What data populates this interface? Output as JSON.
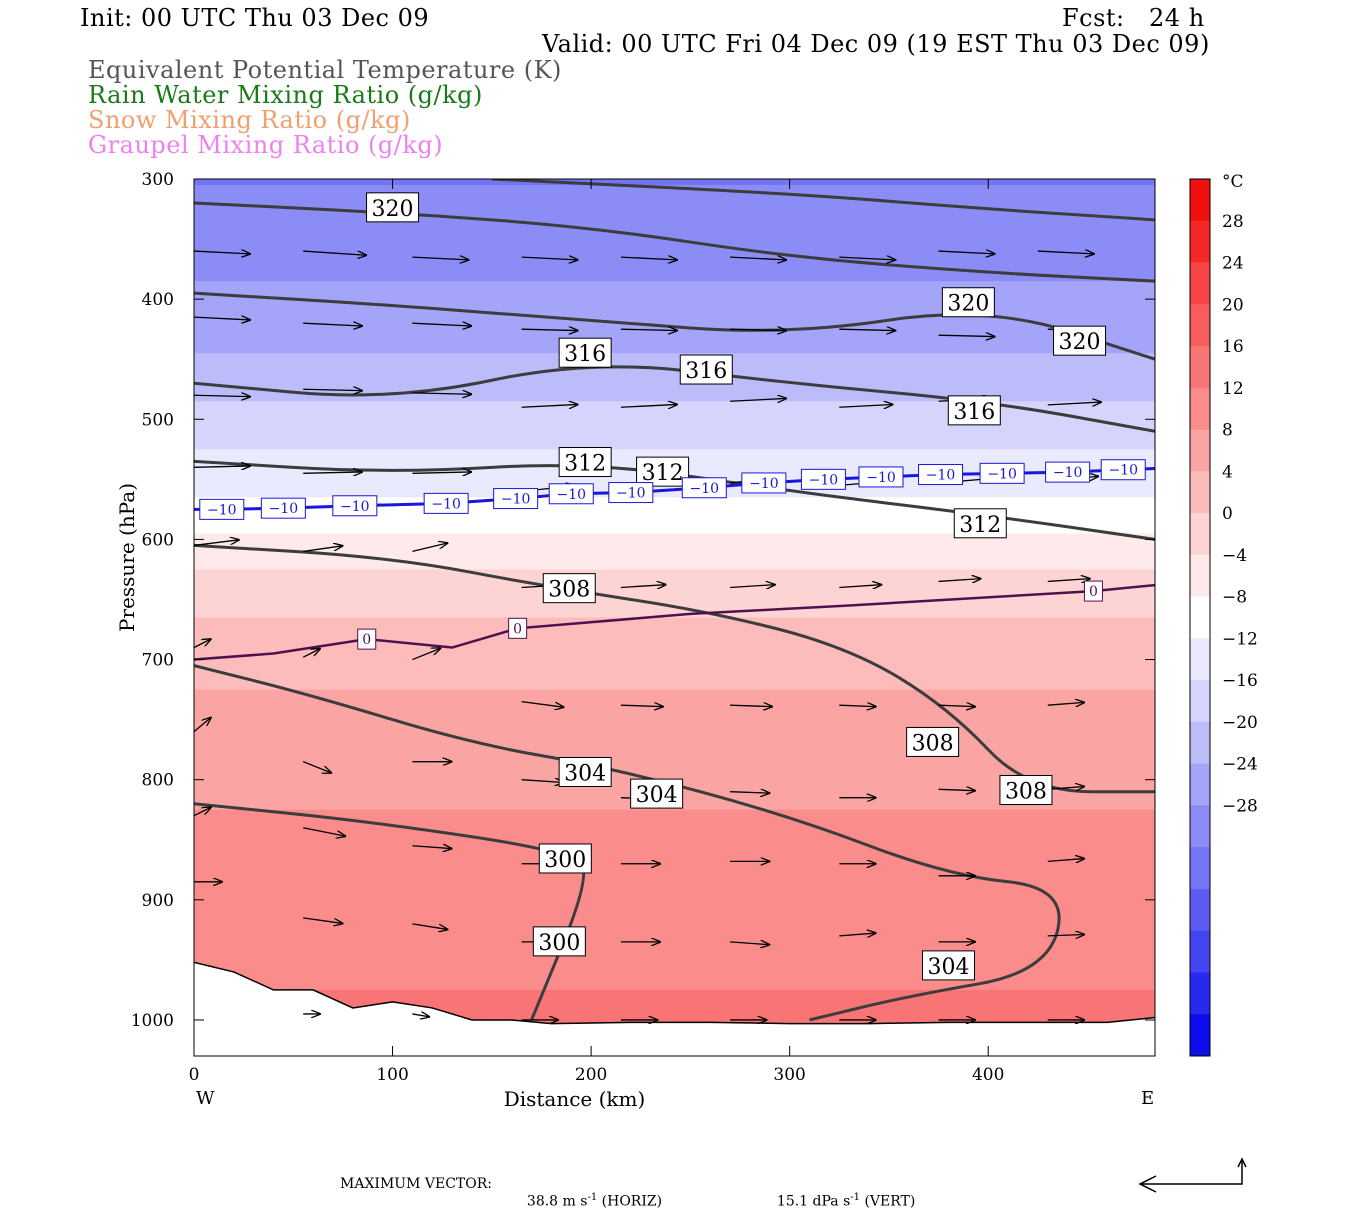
{
  "header": {
    "init": "Init: 00 UTC Thu 03 Dec 09",
    "fcst": "Fcst:   24 h",
    "valid": "Valid: 00 UTC Fri 04 Dec 09 (19 EST Thu 03 Dec 09)",
    "legend": [
      {
        "text": "Equivalent Potential Temperature (K)",
        "color": "#555555"
      },
      {
        "text": "Rain Water Mixing Ratio (g/kg)",
        "color": "#1a7a1a"
      },
      {
        "text": "Snow Mixing Ratio (g/kg)",
        "color": "#f0a070"
      },
      {
        "text": "Graupel Mixing Ratio (g/kg)",
        "color": "#f080f0"
      }
    ]
  },
  "footer": {
    "max_vector_label": "MAXIMUM VECTOR:",
    "horiz_value": "38.8",
    "horiz_unit": "m s",
    "horiz_tag": "(HORIZ)",
    "vert_value": "15.1",
    "vert_unit": "dPa s",
    "vert_tag": "(VERT)",
    "exp": "-1"
  },
  "chart_data": {
    "type": "cross-section",
    "xlabel": "Distance (km)",
    "ylabel": "Pressure (hPa)",
    "xlim": [
      0,
      484
    ],
    "ylim": [
      1030,
      300
    ],
    "x_ticks": [
      0,
      100,
      200,
      300,
      400
    ],
    "y_ticks": [
      300,
      400,
      500,
      600,
      700,
      800,
      900,
      1000
    ],
    "x_end_labels": {
      "left": "W",
      "right": "E"
    },
    "colorbar": {
      "unit": "°C",
      "labels": [
        28,
        24,
        20,
        16,
        12,
        8,
        4,
        0,
        -4,
        -8,
        -12,
        -16,
        -20,
        -24,
        -28
      ],
      "colors": [
        "#f01010",
        "#f42828",
        "#f74444",
        "#f85c5c",
        "#f97474",
        "#fa8c8c",
        "#fba4a4",
        "#fcbcbc",
        "#fdd4d4",
        "#feeaea",
        "#ffffff",
        "#eaeafe",
        "#d4d4fc",
        "#bcbcfa",
        "#a4a4f8",
        "#8c8cf6",
        "#7474f4",
        "#5c5cf2",
        "#4444f0",
        "#2828ee",
        "#0c0cec"
      ]
    },
    "temperature_bands": [
      {
        "p": 300,
        "t": -32
      },
      {
        "p": 420,
        "t": -26
      },
      {
        "p": 500,
        "t": -18
      },
      {
        "p": 560,
        "t": -12
      },
      {
        "p": 620,
        "t": -4
      },
      {
        "p": 660,
        "t": 0
      },
      {
        "p": 720,
        "t": 4
      },
      {
        "p": 820,
        "t": 8
      },
      {
        "p": 920,
        "t": 10
      },
      {
        "p": 1000,
        "t": 13
      }
    ],
    "theta_e_contours": [
      {
        "value": 320,
        "points": [
          [
            0,
            320
          ],
          [
            100,
            328
          ],
          [
            200,
            340
          ],
          [
            300,
            365
          ],
          [
            400,
            378
          ],
          [
            484,
            385
          ]
        ],
        "labels": [
          [
            100,
            324
          ]
        ]
      },
      {
        "value": 320,
        "points": [
          [
            150,
            300
          ],
          [
            300,
            312
          ],
          [
            400,
            325
          ],
          [
            484,
            334
          ]
        ],
        "labels": []
      },
      {
        "value": 320,
        "points": [
          [
            0,
            395
          ],
          [
            100,
            405
          ],
          [
            200,
            418
          ],
          [
            300,
            430
          ],
          [
            400,
            405
          ],
          [
            484,
            450
          ]
        ],
        "labels": [
          [
            390,
            403
          ],
          [
            446,
            435
          ]
        ]
      },
      {
        "value": 316,
        "points": [
          [
            0,
            470
          ],
          [
            100,
            485
          ],
          [
            200,
            450
          ],
          [
            300,
            470
          ],
          [
            400,
            485
          ],
          [
            484,
            510
          ]
        ],
        "labels": [
          [
            197,
            445
          ],
          [
            258,
            459
          ],
          [
            393,
            493
          ]
        ]
      },
      {
        "value": 312,
        "points": [
          [
            0,
            535
          ],
          [
            100,
            545
          ],
          [
            200,
            535
          ],
          [
            300,
            560
          ],
          [
            400,
            580
          ],
          [
            484,
            600
          ]
        ],
        "labels": [
          [
            197,
            536
          ],
          [
            236,
            544
          ],
          [
            396,
            587
          ]
        ]
      },
      {
        "value": 308,
        "points": [
          [
            0,
            605
          ],
          [
            100,
            615
          ],
          [
            180,
            640
          ],
          [
            260,
            660
          ],
          [
            330,
            690
          ],
          [
            380,
            740
          ],
          [
            420,
            810
          ],
          [
            484,
            810
          ]
        ],
        "labels": [
          [
            189,
            641
          ],
          [
            372,
            769
          ],
          [
            419,
            809
          ]
        ]
      },
      {
        "value": 304,
        "points": [
          [
            0,
            705
          ],
          [
            60,
            730
          ],
          [
            140,
            770
          ],
          [
            210,
            790
          ],
          [
            300,
            830
          ],
          [
            380,
            880
          ],
          [
            440,
            890
          ],
          [
            430,
            960
          ],
          [
            360,
            980
          ],
          [
            310,
            1000
          ]
        ],
        "labels": [
          [
            197,
            794
          ],
          [
            233,
            812
          ],
          [
            380,
            955
          ]
        ]
      },
      {
        "value": 300,
        "points": [
          [
            0,
            820
          ],
          [
            90,
            835
          ],
          [
            190,
            860
          ],
          [
            200,
            880
          ],
          [
            170,
            1000
          ]
        ],
        "labels": [
          [
            187,
            866
          ],
          [
            184,
            935
          ]
        ]
      }
    ],
    "isotherm_labels": {
      "minus10": {
        "value": -10,
        "positions": [
          [
            14,
            575
          ],
          [
            45,
            574
          ],
          [
            81,
            572
          ],
          [
            127,
            570
          ],
          [
            162,
            566
          ],
          [
            190,
            562
          ],
          [
            220,
            561
          ],
          [
            257,
            557
          ],
          [
            287,
            553
          ],
          [
            317,
            550
          ],
          [
            346,
            548
          ],
          [
            376,
            546
          ],
          [
            407,
            545
          ],
          [
            440,
            544
          ],
          [
            468,
            542
          ]
        ]
      },
      "zero": {
        "value": 0,
        "positions": [
          [
            87,
            683
          ],
          [
            163,
            674
          ],
          [
            453,
            643
          ]
        ]
      }
    },
    "wind_vectors": [
      {
        "x": 0,
        "p": 360,
        "u": 40,
        "w": -2
      },
      {
        "x": 55,
        "p": 360,
        "u": 45,
        "w": -3
      },
      {
        "x": 110,
        "p": 365,
        "u": 40,
        "w": -2
      },
      {
        "x": 165,
        "p": 365,
        "u": 40,
        "w": -2
      },
      {
        "x": 215,
        "p": 365,
        "u": 40,
        "w": -2
      },
      {
        "x": 270,
        "p": 365,
        "u": 40,
        "w": -2
      },
      {
        "x": 325,
        "p": 365,
        "u": 40,
        "w": -2
      },
      {
        "x": 375,
        "p": 360,
        "u": 40,
        "w": -2
      },
      {
        "x": 425,
        "p": 360,
        "u": 40,
        "w": -2
      },
      {
        "x": 0,
        "p": 415,
        "u": 40,
        "w": -2
      },
      {
        "x": 55,
        "p": 420,
        "u": 42,
        "w": -2
      },
      {
        "x": 110,
        "p": 420,
        "u": 42,
        "w": -2
      },
      {
        "x": 165,
        "p": 425,
        "u": 40,
        "w": -1
      },
      {
        "x": 215,
        "p": 425,
        "u": 40,
        "w": -1
      },
      {
        "x": 270,
        "p": 425,
        "u": 40,
        "w": -1
      },
      {
        "x": 325,
        "p": 425,
        "u": 40,
        "w": -1
      },
      {
        "x": 375,
        "p": 430,
        "u": 40,
        "w": -1
      },
      {
        "x": 430,
        "p": 425,
        "u": 40,
        "w": -1
      },
      {
        "x": 0,
        "p": 480,
        "u": 40,
        "w": -1
      },
      {
        "x": 55,
        "p": 475,
        "u": 42,
        "w": -1
      },
      {
        "x": 110,
        "p": 478,
        "u": 42,
        "w": -1
      },
      {
        "x": 165,
        "p": 490,
        "u": 40,
        "w": 2
      },
      {
        "x": 215,
        "p": 490,
        "u": 40,
        "w": 2
      },
      {
        "x": 270,
        "p": 485,
        "u": 40,
        "w": 2
      },
      {
        "x": 325,
        "p": 490,
        "u": 38,
        "w": 2
      },
      {
        "x": 375,
        "p": 485,
        "u": 38,
        "w": 2
      },
      {
        "x": 430,
        "p": 488,
        "u": 38,
        "w": 2
      },
      {
        "x": 0,
        "p": 540,
        "u": 40,
        "w": 1
      },
      {
        "x": 55,
        "p": 545,
        "u": 42,
        "w": 1
      },
      {
        "x": 110,
        "p": 545,
        "u": 42,
        "w": 1
      },
      {
        "x": 165,
        "p": 560,
        "u": 38,
        "w": 4
      },
      {
        "x": 215,
        "p": 555,
        "u": 38,
        "w": 4
      },
      {
        "x": 270,
        "p": 553,
        "u": 38,
        "w": 4
      },
      {
        "x": 325,
        "p": 555,
        "u": 36,
        "w": 3
      },
      {
        "x": 375,
        "p": 553,
        "u": 36,
        "w": 3
      },
      {
        "x": 430,
        "p": 551,
        "u": 36,
        "w": 3
      },
      {
        "x": 0,
        "p": 605,
        "u": 32,
        "w": 4
      },
      {
        "x": 55,
        "p": 610,
        "u": 28,
        "w": 4
      },
      {
        "x": 110,
        "p": 610,
        "u": 25,
        "w": 6
      },
      {
        "x": 165,
        "p": 640,
        "u": 32,
        "w": 2
      },
      {
        "x": 215,
        "p": 640,
        "u": 32,
        "w": 2
      },
      {
        "x": 270,
        "p": 640,
        "u": 32,
        "w": 2
      },
      {
        "x": 325,
        "p": 640,
        "u": 30,
        "w": 2
      },
      {
        "x": 375,
        "p": 635,
        "u": 30,
        "w": 2
      },
      {
        "x": 430,
        "p": 635,
        "u": 30,
        "w": 2
      },
      {
        "x": 0,
        "p": 690,
        "u": 12,
        "w": 6
      },
      {
        "x": 55,
        "p": 698,
        "u": 12,
        "w": 6
      },
      {
        "x": 110,
        "p": 700,
        "u": 20,
        "w": 8
      },
      {
        "x": 165,
        "p": 735,
        "u": 30,
        "w": -4
      },
      {
        "x": 215,
        "p": 738,
        "u": 30,
        "w": -1
      },
      {
        "x": 270,
        "p": 738,
        "u": 30,
        "w": -1
      },
      {
        "x": 325,
        "p": 738,
        "u": 26,
        "w": -1
      },
      {
        "x": 375,
        "p": 738,
        "u": 26,
        "w": -1
      },
      {
        "x": 430,
        "p": 738,
        "u": 26,
        "w": 2
      },
      {
        "x": 0,
        "p": 760,
        "u": 12,
        "w": 10
      },
      {
        "x": 55,
        "p": 785,
        "u": 20,
        "w": -8
      },
      {
        "x": 110,
        "p": 785,
        "u": 28,
        "w": 0
      },
      {
        "x": 165,
        "p": 800,
        "u": 30,
        "w": -2
      },
      {
        "x": 215,
        "p": 815,
        "u": 28,
        "w": -1
      },
      {
        "x": 270,
        "p": 810,
        "u": 28,
        "w": -1
      },
      {
        "x": 325,
        "p": 815,
        "u": 26,
        "w": 0
      },
      {
        "x": 375,
        "p": 808,
        "u": 26,
        "w": -1
      },
      {
        "x": 430,
        "p": 808,
        "u": 26,
        "w": 2
      },
      {
        "x": 0,
        "p": 830,
        "u": 12,
        "w": 6
      },
      {
        "x": 55,
        "p": 840,
        "u": 30,
        "w": -6
      },
      {
        "x": 110,
        "p": 855,
        "u": 28,
        "w": -2
      },
      {
        "x": 165,
        "p": 870,
        "u": 28,
        "w": 0
      },
      {
        "x": 215,
        "p": 870,
        "u": 28,
        "w": 0
      },
      {
        "x": 270,
        "p": 868,
        "u": 28,
        "w": 0
      },
      {
        "x": 325,
        "p": 870,
        "u": 26,
        "w": 0
      },
      {
        "x": 375,
        "p": 880,
        "u": 26,
        "w": 0
      },
      {
        "x": 430,
        "p": 868,
        "u": 26,
        "w": 2
      },
      {
        "x": 0,
        "p": 885,
        "u": 20,
        "w": 0
      },
      {
        "x": 55,
        "p": 915,
        "u": 28,
        "w": -4
      },
      {
        "x": 110,
        "p": 920,
        "u": 25,
        "w": -4
      },
      {
        "x": 165,
        "p": 935,
        "u": 30,
        "w": 0
      },
      {
        "x": 215,
        "p": 935,
        "u": 28,
        "w": 0
      },
      {
        "x": 270,
        "p": 935,
        "u": 28,
        "w": -2
      },
      {
        "x": 325,
        "p": 930,
        "u": 26,
        "w": 2
      },
      {
        "x": 375,
        "p": 935,
        "u": 26,
        "w": 0
      },
      {
        "x": 430,
        "p": 930,
        "u": 26,
        "w": 1
      },
      {
        "x": 55,
        "p": 995,
        "u": 12,
        "w": 0
      },
      {
        "x": 110,
        "p": 995,
        "u": 12,
        "w": -2
      },
      {
        "x": 165,
        "p": 1000,
        "u": 26,
        "w": 0
      },
      {
        "x": 215,
        "p": 1000,
        "u": 26,
        "w": 0
      },
      {
        "x": 270,
        "p": 1000,
        "u": 26,
        "w": 0
      },
      {
        "x": 325,
        "p": 1000,
        "u": 26,
        "w": 0
      },
      {
        "x": 375,
        "p": 1000,
        "u": 26,
        "w": 0
      },
      {
        "x": 430,
        "p": 1000,
        "u": 26,
        "w": 0
      }
    ],
    "terrain": [
      [
        0,
        952
      ],
      [
        20,
        960
      ],
      [
        40,
        975
      ],
      [
        60,
        975
      ],
      [
        80,
        990
      ],
      [
        100,
        985
      ],
      [
        120,
        990
      ],
      [
        140,
        1000
      ],
      [
        160,
        1000
      ],
      [
        180,
        1003
      ],
      [
        220,
        1002
      ],
      [
        260,
        1002
      ],
      [
        300,
        1003
      ],
      [
        340,
        1003
      ],
      [
        380,
        1002
      ],
      [
        420,
        1002
      ],
      [
        460,
        1002
      ],
      [
        484,
        998
      ]
    ]
  }
}
